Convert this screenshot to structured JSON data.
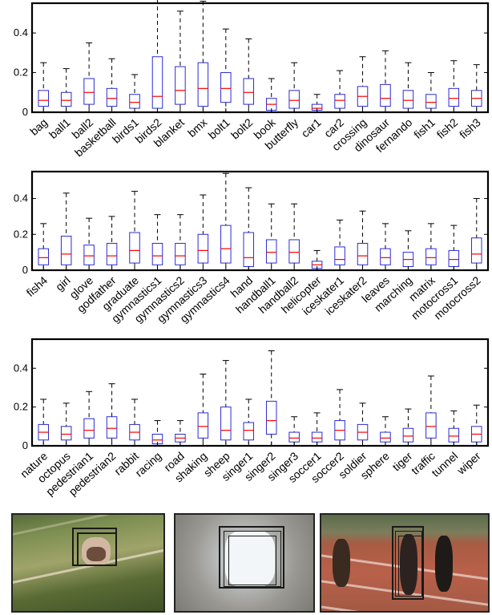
{
  "chart_data": [
    {
      "type": "box",
      "ylim": [
        0,
        0.55
      ],
      "yticks": [
        "0",
        "0.2",
        "0.4"
      ],
      "ytick_values": [
        0,
        0.2,
        0.4
      ],
      "categories": [
        "bag",
        "ball1",
        "ball2",
        "basketball",
        "birds1",
        "birds2",
        "blanket",
        "bmx",
        "bolt1",
        "bolt2",
        "book",
        "butterfly",
        "car1",
        "car2",
        "crossing",
        "dinosaur",
        "fernando",
        "fish1",
        "fish2",
        "fish3"
      ],
      "boxes": [
        {
          "lo": 0,
          "q1": 0.03,
          "med": 0.06,
          "q3": 0.11,
          "hi": 0.25
        },
        {
          "lo": 0,
          "q1": 0.03,
          "med": 0.06,
          "q3": 0.1,
          "hi": 0.22
        },
        {
          "lo": 0,
          "q1": 0.04,
          "med": 0.1,
          "q3": 0.17,
          "hi": 0.35
        },
        {
          "lo": 0,
          "q1": 0.03,
          "med": 0.07,
          "q3": 0.12,
          "hi": 0.27
        },
        {
          "lo": 0,
          "q1": 0.02,
          "med": 0.05,
          "q3": 0.09,
          "hi": 0.19
        },
        {
          "lo": 0,
          "q1": 0.02,
          "med": 0.08,
          "q3": 0.28,
          "hi": 0.57
        },
        {
          "lo": 0,
          "q1": 0.04,
          "med": 0.11,
          "q3": 0.23,
          "hi": 0.51
        },
        {
          "lo": 0,
          "q1": 0.03,
          "med": 0.12,
          "q3": 0.25,
          "hi": 0.56
        },
        {
          "lo": 0,
          "q1": 0.05,
          "med": 0.12,
          "q3": 0.2,
          "hi": 0.42
        },
        {
          "lo": 0,
          "q1": 0.04,
          "med": 0.1,
          "q3": 0.17,
          "hi": 0.37
        },
        {
          "lo": 0,
          "q1": 0.01,
          "med": 0.04,
          "q3": 0.07,
          "hi": 0.17
        },
        {
          "lo": 0,
          "q1": 0.02,
          "med": 0.06,
          "q3": 0.11,
          "hi": 0.25
        },
        {
          "lo": 0,
          "q1": 0.01,
          "med": 0.02,
          "q3": 0.04,
          "hi": 0.09
        },
        {
          "lo": 0,
          "q1": 0.02,
          "med": 0.06,
          "q3": 0.09,
          "hi": 0.21
        },
        {
          "lo": 0,
          "q1": 0.03,
          "med": 0.08,
          "q3": 0.13,
          "hi": 0.28
        },
        {
          "lo": 0,
          "q1": 0.03,
          "med": 0.07,
          "q3": 0.14,
          "hi": 0.31
        },
        {
          "lo": 0,
          "q1": 0.02,
          "med": 0.06,
          "q3": 0.11,
          "hi": 0.25
        },
        {
          "lo": 0,
          "q1": 0.02,
          "med": 0.05,
          "q3": 0.09,
          "hi": 0.2
        },
        {
          "lo": 0,
          "q1": 0.03,
          "med": 0.07,
          "q3": 0.12,
          "hi": 0.26
        },
        {
          "lo": 0,
          "q1": 0.03,
          "med": 0.07,
          "q3": 0.11,
          "hi": 0.24
        }
      ]
    },
    {
      "type": "box",
      "ylim": [
        0,
        0.55
      ],
      "yticks": [
        "0",
        "0.2",
        "0.4"
      ],
      "ytick_values": [
        0,
        0.2,
        0.4
      ],
      "categories": [
        "fish4",
        "girl",
        "glove",
        "godfather",
        "graduate",
        "gymnastics1",
        "gymnastics2",
        "gymnastics3",
        "gymnastics4",
        "hand",
        "handball1",
        "handball2",
        "helicopter",
        "iceskater1",
        "iceskater2",
        "leaves",
        "marching",
        "matrix",
        "motocross1",
        "motocross2"
      ],
      "boxes": [
        {
          "lo": 0,
          "q1": 0.03,
          "med": 0.07,
          "q3": 0.12,
          "hi": 0.26
        },
        {
          "lo": 0,
          "q1": 0.03,
          "med": 0.09,
          "q3": 0.19,
          "hi": 0.43
        },
        {
          "lo": 0,
          "q1": 0.03,
          "med": 0.08,
          "q3": 0.14,
          "hi": 0.29
        },
        {
          "lo": 0,
          "q1": 0.03,
          "med": 0.08,
          "q3": 0.15,
          "hi": 0.3
        },
        {
          "lo": 0,
          "q1": 0.04,
          "med": 0.11,
          "q3": 0.21,
          "hi": 0.44
        },
        {
          "lo": 0,
          "q1": 0.03,
          "med": 0.08,
          "q3": 0.15,
          "hi": 0.31
        },
        {
          "lo": 0,
          "q1": 0.03,
          "med": 0.08,
          "q3": 0.15,
          "hi": 0.31
        },
        {
          "lo": 0,
          "q1": 0.04,
          "med": 0.11,
          "q3": 0.2,
          "hi": 0.42
        },
        {
          "lo": 0,
          "q1": 0.04,
          "med": 0.12,
          "q3": 0.25,
          "hi": 0.54
        },
        {
          "lo": 0,
          "q1": 0.02,
          "med": 0.07,
          "q3": 0.21,
          "hi": 0.46
        },
        {
          "lo": 0,
          "q1": 0.04,
          "med": 0.1,
          "q3": 0.17,
          "hi": 0.37
        },
        {
          "lo": 0,
          "q1": 0.04,
          "med": 0.1,
          "q3": 0.17,
          "hi": 0.37
        },
        {
          "lo": 0,
          "q1": 0.01,
          "med": 0.03,
          "q3": 0.05,
          "hi": 0.11
        },
        {
          "lo": 0,
          "q1": 0.03,
          "med": 0.06,
          "q3": 0.13,
          "hi": 0.28
        },
        {
          "lo": 0,
          "q1": 0.03,
          "med": 0.08,
          "q3": 0.15,
          "hi": 0.33
        },
        {
          "lo": 0,
          "q1": 0.03,
          "med": 0.07,
          "q3": 0.12,
          "hi": 0.26
        },
        {
          "lo": 0,
          "q1": 0.02,
          "med": 0.06,
          "q3": 0.1,
          "hi": 0.22
        },
        {
          "lo": 0,
          "q1": 0.03,
          "med": 0.07,
          "q3": 0.12,
          "hi": 0.26
        },
        {
          "lo": 0,
          "q1": 0.02,
          "med": 0.06,
          "q3": 0.11,
          "hi": 0.25
        },
        {
          "lo": 0,
          "q1": 0.04,
          "med": 0.09,
          "q3": 0.18,
          "hi": 0.4
        }
      ]
    },
    {
      "type": "box",
      "ylim": [
        0,
        0.55
      ],
      "yticks": [
        "0",
        "0.2",
        "0.4"
      ],
      "ytick_values": [
        0,
        0.2,
        0.4
      ],
      "categories": [
        "nature",
        "octopus",
        "pedestrian1",
        "pedestrian2",
        "rabbit",
        "racing",
        "road",
        "shaking",
        "sheep",
        "singer1",
        "singer2",
        "singer3",
        "soccer1",
        "soccer2",
        "soldier",
        "sphere",
        "tiger",
        "traffic",
        "tunnel",
        "wiper"
      ],
      "boxes": [
        {
          "lo": 0,
          "q1": 0.03,
          "med": 0.07,
          "q3": 0.11,
          "hi": 0.24
        },
        {
          "lo": 0,
          "q1": 0.03,
          "med": 0.06,
          "q3": 0.1,
          "hi": 0.22
        },
        {
          "lo": 0,
          "q1": 0.04,
          "med": 0.08,
          "q3": 0.14,
          "hi": 0.28
        },
        {
          "lo": 0,
          "q1": 0.04,
          "med": 0.09,
          "q3": 0.15,
          "hi": 0.32
        },
        {
          "lo": 0,
          "q1": 0.03,
          "med": 0.07,
          "q3": 0.11,
          "hi": 0.24
        },
        {
          "lo": 0,
          "q1": 0.01,
          "med": 0.03,
          "q3": 0.06,
          "hi": 0.13
        },
        {
          "lo": 0,
          "q1": 0.02,
          "med": 0.04,
          "q3": 0.06,
          "hi": 0.13
        },
        {
          "lo": 0,
          "q1": 0.04,
          "med": 0.1,
          "q3": 0.17,
          "hi": 0.37
        },
        {
          "lo": 0,
          "q1": 0.03,
          "med": 0.08,
          "q3": 0.2,
          "hi": 0.44
        },
        {
          "lo": 0,
          "q1": 0.03,
          "med": 0.08,
          "q3": 0.12,
          "hi": 0.24
        },
        {
          "lo": 0,
          "q1": 0.06,
          "med": 0.13,
          "q3": 0.23,
          "hi": 0.49
        },
        {
          "lo": 0,
          "q1": 0.02,
          "med": 0.04,
          "q3": 0.07,
          "hi": 0.15
        },
        {
          "lo": 0,
          "q1": 0.02,
          "med": 0.04,
          "q3": 0.07,
          "hi": 0.17
        },
        {
          "lo": 0,
          "q1": 0.03,
          "med": 0.08,
          "q3": 0.13,
          "hi": 0.29
        },
        {
          "lo": 0,
          "q1": 0.03,
          "med": 0.07,
          "q3": 0.11,
          "hi": 0.22
        },
        {
          "lo": 0,
          "q1": 0.02,
          "med": 0.04,
          "q3": 0.07,
          "hi": 0.15
        },
        {
          "lo": 0,
          "q1": 0.02,
          "med": 0.05,
          "q3": 0.09,
          "hi": 0.19
        },
        {
          "lo": 0,
          "q1": 0.04,
          "med": 0.1,
          "q3": 0.17,
          "hi": 0.36
        },
        {
          "lo": 0,
          "q1": 0.02,
          "med": 0.05,
          "q3": 0.09,
          "hi": 0.18
        },
        {
          "lo": 0,
          "q1": 0.02,
          "med": 0.06,
          "q3": 0.1,
          "hi": 0.21
        }
      ]
    }
  ],
  "colors": {
    "box": "#2b2bd6",
    "median": "#ff0000",
    "whisker": "#000000"
  },
  "thumbnails": [
    "motion-blurred object",
    "occluded object",
    "sprinters"
  ]
}
